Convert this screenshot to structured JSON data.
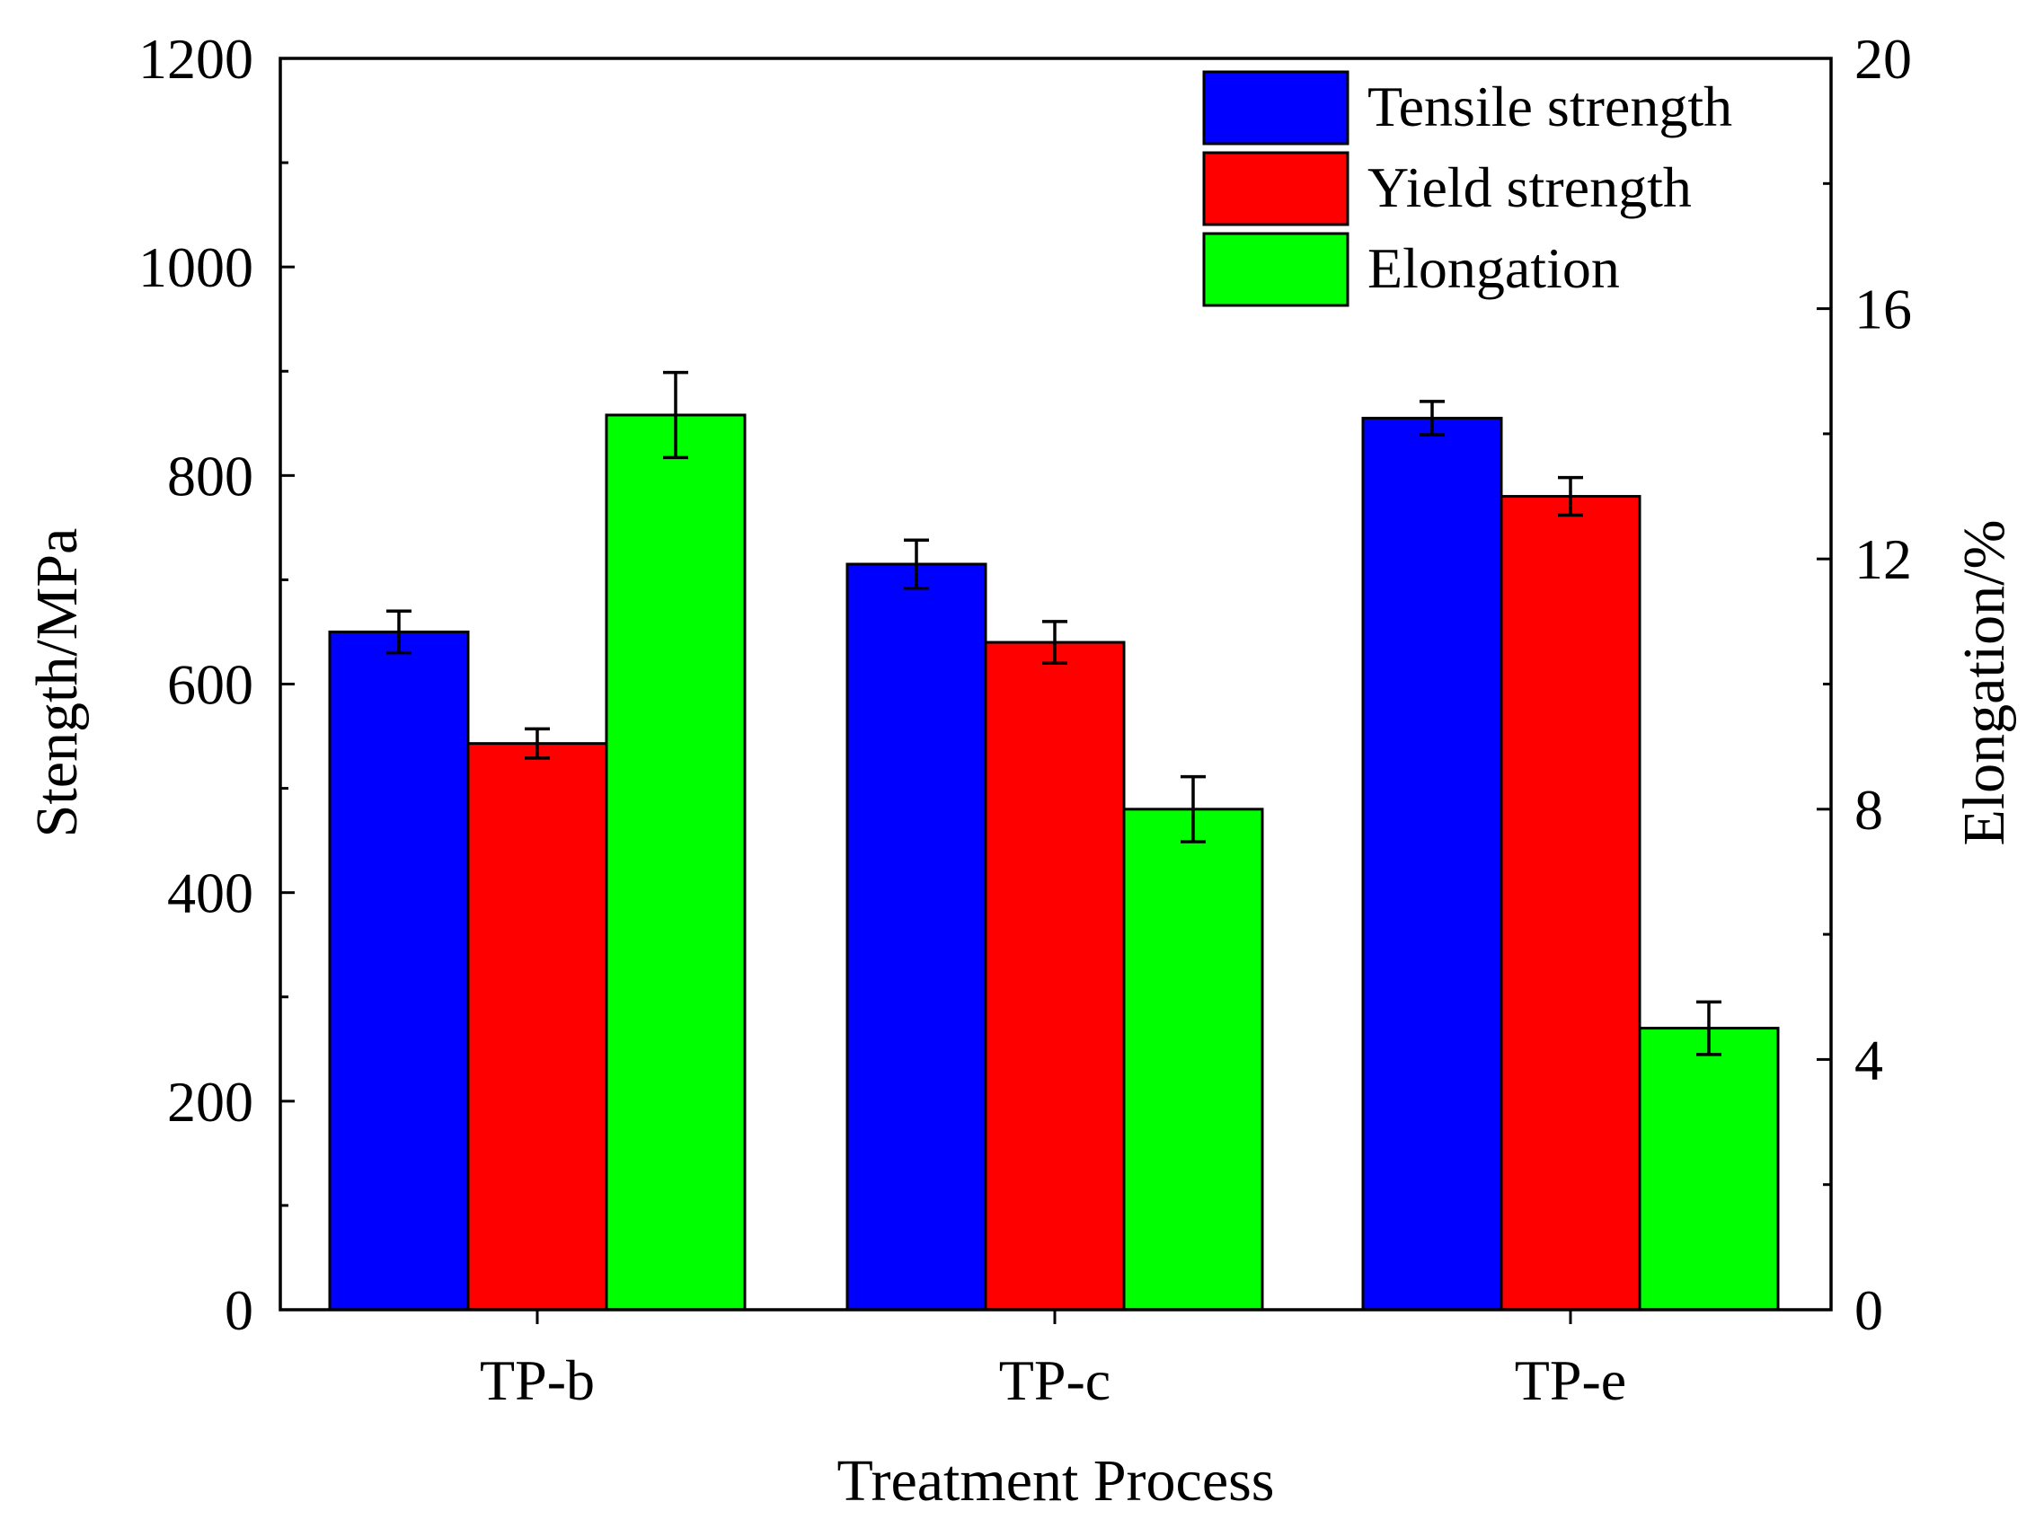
{
  "chart_data": {
    "type": "bar",
    "categories": [
      "TP-b",
      "TP-c",
      "TP-e"
    ],
    "xlabel": "Treatment Process",
    "ylabel": "Stength/MPa",
    "y2label": "Elongation/%",
    "ylim": [
      0,
      1200
    ],
    "y2lim": [
      0,
      20
    ],
    "yticks": [
      "0",
      "200",
      "400",
      "600",
      "800",
      "1000",
      "1200"
    ],
    "y2ticks": [
      "0",
      "4",
      "8",
      "12",
      "16",
      "20"
    ],
    "series": [
      {
        "name": "Tensile strength",
        "axis": "left",
        "color": "#0000ff",
        "values": [
          650,
          715,
          855
        ],
        "errors": [
          20,
          23,
          16
        ]
      },
      {
        "name": "Yield strength",
        "axis": "left",
        "color": "#ff0000",
        "values": [
          543,
          640,
          780
        ],
        "errors": [
          14,
          20,
          18
        ]
      },
      {
        "name": "Elongation",
        "axis": "right",
        "color": "#00ff00",
        "values": [
          14.3,
          8.0,
          4.5
        ],
        "errors": [
          0.68,
          0.52,
          0.42
        ]
      }
    ]
  }
}
